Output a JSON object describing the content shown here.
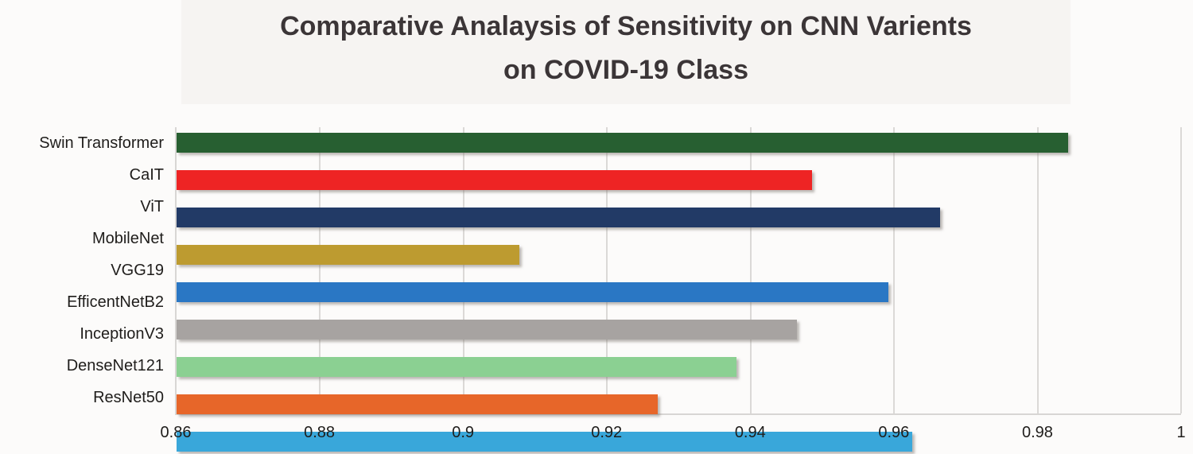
{
  "chart": {
    "title_line1": "Comparative Analaysis of Sensitivity on CNN Varients",
    "title_line2": "on COVID-19 Class"
  },
  "chart_data": {
    "type": "bar",
    "orientation": "horizontal",
    "title": "Comparative Analaysis of Sensitivity on CNN Varients on COVID-19 Class",
    "categories": [
      "Swin Transformer",
      "CaIT",
      "ViT",
      "MobileNet",
      "VGG19",
      "EfficentNetB2",
      "InceptionV3",
      "DenseNet121",
      "ResNet50"
    ],
    "values": [
      0.9843,
      0.9486,
      0.9664,
      0.9078,
      0.9592,
      0.9465,
      0.938,
      0.9271,
      0.9625
    ],
    "bar_colors": [
      "#275f31",
      "#ee2424",
      "#223a66",
      "#bd9b30",
      "#2a77c4",
      "#a7a3a1",
      "#8bd092",
      "#e76629",
      "#39a7da"
    ],
    "xlabel": "",
    "ylabel": "",
    "xlim": [
      0.86,
      1.0
    ],
    "x_ticks": [
      "0.86",
      "0.88",
      "0.9",
      "0.92",
      "0.94",
      "0.96",
      "0.98",
      "1"
    ],
    "x_tick_values": [
      0.86,
      0.88,
      0.9,
      0.92,
      0.94,
      0.96,
      0.98,
      1
    ],
    "grid": true,
    "legend": false
  },
  "colors": {
    "background": "#fcfbfa",
    "title_band_bg": "#f6f4f2",
    "title_text": "#3b3537",
    "axis_text": "#1f1d1b",
    "gridline": "#dbd9d7"
  }
}
